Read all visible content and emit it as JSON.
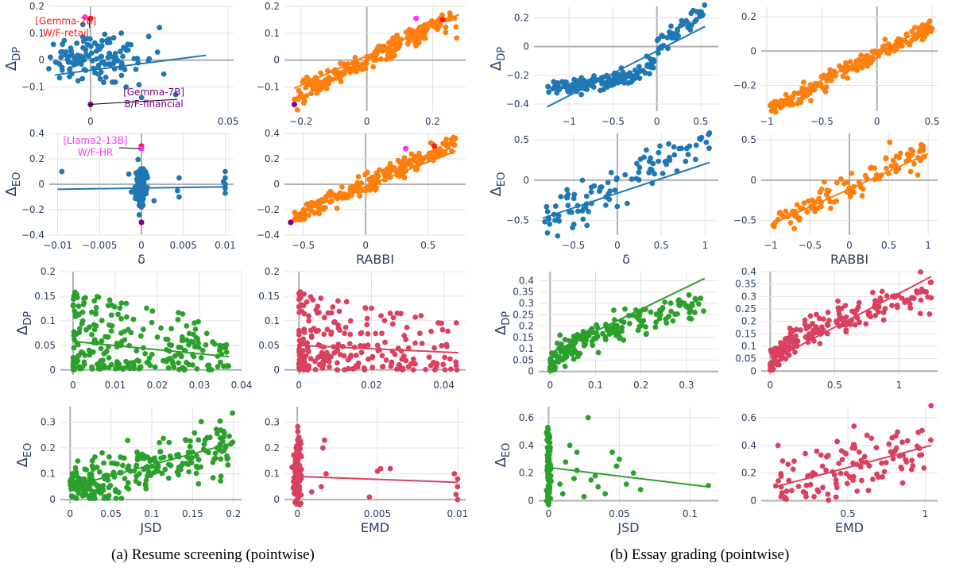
{
  "colors": {
    "blue": "#1f77b4",
    "orange": "#ff7f0e",
    "green": "#2ca02c",
    "crimson": "#d9415f",
    "highlight_red": "#ff1a1a",
    "highlight_magenta": "#ff33ff",
    "highlight_purple": "#800080",
    "tick_text": "#2a3f5f"
  },
  "captions": {
    "a": "(a) Resume screening (pointwise)",
    "b": "(b) Essay grading (pointwise)"
  },
  "chart_data": [
    {
      "id": "a-delta-dp",
      "type": "scatter",
      "color": "blue",
      "ylabel": "Δ",
      "ylabel_sub": "DP",
      "xlabel": "",
      "xlim": [
        -0.015,
        0.052
      ],
      "ylim": [
        -0.19,
        0.2
      ],
      "xticks": [
        0,
        0.05
      ],
      "xtick_labels": [
        "0",
        "0.05"
      ],
      "yticks": [
        -0.2,
        -0.1,
        0,
        0.1,
        0.2
      ],
      "ytick_labels": [
        "",
        "−0.1",
        "0",
        "0.1",
        "0.2"
      ],
      "gen": {
        "mode": "vertical",
        "x0": 0,
        "xspread": 0.01,
        "yc": 0,
        "ys": 0.05,
        "n": 140,
        "seed": 1
      },
      "fit": {
        "x": [
          -0.013,
          0.042
        ],
        "y": [
          -0.055,
          0.018
        ]
      },
      "highlights": [
        {
          "x": 0,
          "y": 0.155,
          "color": "highlight_red"
        },
        {
          "x": -0.002,
          "y": 0.16,
          "color": "highlight_magenta"
        },
        {
          "x": 0,
          "y": -0.165,
          "color": "highlight_purple"
        }
      ],
      "annotations": [
        {
          "lines": [
            "[Gemma-2B]",
            "W/F-retail"
          ],
          "color": "highlight_red",
          "ax": -0.009,
          "ay": 0.125,
          "px": 0,
          "py": 0.155
        },
        {
          "lines": [
            "[Gemma-7B]",
            "B/F-financial"
          ],
          "color": "highlight_purple",
          "ax": 0.023,
          "ay": -0.14,
          "px": 0,
          "py": -0.165
        }
      ]
    },
    {
      "id": "a-rabbi-dp",
      "type": "scatter",
      "color": "orange",
      "ylabel": "",
      "xlabel": "",
      "xlim": [
        -0.25,
        0.3
      ],
      "ylim": [
        -0.19,
        0.2
      ],
      "xticks": [
        -0.2,
        0,
        0.2
      ],
      "xtick_labels": [
        "−0.2",
        "0",
        "0.2"
      ],
      "yticks": [
        -0.2,
        -0.1,
        0,
        0.1,
        0.2
      ],
      "ytick_labels": [
        "",
        "−0.1",
        "0",
        "0.1",
        "0.2"
      ],
      "gen": {
        "mode": "linear",
        "xmin": -0.22,
        "xmax": 0.28,
        "slope": 0.6,
        "intercept": 0,
        "noise": 0.02,
        "n": 220,
        "seed": 2
      },
      "fit": {
        "x": [
          -0.22,
          0.28
        ],
        "y": [
          -0.105,
          0.17
        ]
      },
      "highlights": [
        {
          "x": 0.23,
          "y": 0.15,
          "color": "highlight_red"
        },
        {
          "x": 0.15,
          "y": 0.155,
          "color": "highlight_magenta"
        },
        {
          "x": -0.22,
          "y": -0.165,
          "color": "highlight_purple"
        }
      ]
    },
    {
      "id": "a-delta-eo",
      "type": "scatter",
      "color": "blue",
      "ylabel": "Δ",
      "ylabel_sub": "EO",
      "xlabel": "δ",
      "xlim": [
        -0.011,
        0.011
      ],
      "ylim": [
        -0.4,
        0.4
      ],
      "xticks": [
        -0.01,
        -0.005,
        0,
        0.005,
        0.01
      ],
      "xtick_labels": [
        "−0.01",
        "−0.005",
        "0",
        "0.005",
        "0.01"
      ],
      "yticks": [
        -0.4,
        -0.2,
        0,
        0.2,
        0.4
      ],
      "ytick_labels": [
        "−0.4",
        "−0.2",
        "0",
        "0.2",
        "0.4"
      ],
      "gen": {
        "mode": "vertical",
        "x0": 0,
        "xspread": 0.0003,
        "yc": 0,
        "ys": 0.09,
        "n": 110,
        "seed": 3
      },
      "extra_points": [
        [
          0.01,
          0.1
        ],
        [
          0.01,
          0.05
        ],
        [
          0.01,
          0.0
        ],
        [
          0.01,
          -0.03
        ],
        [
          0.01,
          -0.07
        ],
        [
          0.0098,
          0.02
        ],
        [
          0.0045,
          0.05
        ],
        [
          0.0043,
          -0.05
        ],
        [
          0.0045,
          -0.1
        ],
        [
          -0.0095,
          0.1
        ],
        [
          -0.0015,
          0.08
        ],
        [
          -0.0012,
          -0.06
        ],
        [
          0.0015,
          -0.13
        ]
      ],
      "fit": {
        "x": [
          -0.01,
          0.01
        ],
        "y": [
          -0.04,
          -0.02
        ]
      },
      "highlights": [
        {
          "x": 0,
          "y": 0.3,
          "color": "highlight_red"
        },
        {
          "x": 0,
          "y": 0.28,
          "color": "highlight_magenta"
        },
        {
          "x": 0,
          "y": -0.3,
          "color": "highlight_purple"
        }
      ],
      "annotations": [
        {
          "lines": [
            "[Llama2-13B]",
            "W/F-HR"
          ],
          "color": "highlight_magenta",
          "ax": -0.0055,
          "ay": 0.3,
          "px": 0,
          "py": 0.28
        }
      ]
    },
    {
      "id": "a-rabbi-eo",
      "type": "scatter",
      "color": "orange",
      "ylabel": "",
      "xlabel": "RABBI",
      "xlim": [
        -0.65,
        0.8
      ],
      "ylim": [
        -0.4,
        0.4
      ],
      "xticks": [
        -0.5,
        0,
        0.5
      ],
      "xtick_labels": [
        "−0.5",
        "0",
        "0.5"
      ],
      "yticks": [
        -0.4,
        -0.2,
        0,
        0.2,
        0.4
      ],
      "ytick_labels": [
        "−0.4",
        "−0.2",
        "0",
        "0.2",
        "0.4"
      ],
      "gen": {
        "mode": "linear",
        "xmin": -0.58,
        "xmax": 0.72,
        "slope": 0.45,
        "intercept": 0,
        "noise": 0.035,
        "n": 230,
        "seed": 4
      },
      "fit": {
        "x": [
          -0.58,
          0.72
        ],
        "y": [
          -0.24,
          0.26
        ]
      },
      "highlights": [
        {
          "x": 0.55,
          "y": 0.3,
          "color": "highlight_red"
        },
        {
          "x": 0.32,
          "y": 0.28,
          "color": "highlight_magenta"
        },
        {
          "x": -0.6,
          "y": -0.3,
          "color": "highlight_purple"
        }
      ]
    },
    {
      "id": "a-jsd-dp",
      "type": "scatter",
      "color": "green",
      "ylabel": "Δ",
      "ylabel_sub": "DP",
      "xlabel": "",
      "xlim": [
        -0.003,
        0.04
      ],
      "ylim": [
        -0.01,
        0.2
      ],
      "xticks": [
        0,
        0.01,
        0.02,
        0.03,
        0.04
      ],
      "xtick_labels": [
        "0",
        "0.01",
        "0.02",
        "0.03",
        "0.04"
      ],
      "yticks": [
        0,
        0.05,
        0.1,
        0.15,
        0.2
      ],
      "ytick_labels": [
        "0",
        "0.05",
        "0.1",
        "0.15",
        "0.2"
      ],
      "gen": {
        "mode": "decay",
        "xmax": 0.037,
        "xpow": 1.6,
        "ymax": 0.16,
        "n": 240,
        "seed": 5
      },
      "fit": {
        "x": [
          0,
          0.037
        ],
        "y": [
          0.058,
          0.027
        ]
      }
    },
    {
      "id": "a-emd-dp",
      "type": "scatter",
      "color": "crimson",
      "ylabel": "",
      "xlabel": "",
      "xlim": [
        -0.004,
        0.046
      ],
      "ylim": [
        -0.01,
        0.2
      ],
      "xticks": [
        0,
        0.02,
        0.04
      ],
      "xtick_labels": [
        "0",
        "0.02",
        "0.04"
      ],
      "yticks": [
        0,
        0.05,
        0.1,
        0.15,
        0.2
      ],
      "ytick_labels": [
        "0",
        "0.05",
        "0.1",
        "0.15",
        "0.2"
      ],
      "gen": {
        "mode": "decay",
        "xmax": 0.044,
        "xpow": 2.2,
        "ymax": 0.16,
        "n": 240,
        "seed": 6
      },
      "fit": {
        "x": [
          0,
          0.044
        ],
        "y": [
          0.05,
          0.035
        ]
      }
    },
    {
      "id": "a-jsd-eo",
      "type": "scatter",
      "color": "green",
      "ylabel": "Δ",
      "ylabel_sub": "EO",
      "xlabel": "JSD",
      "xlim": [
        -0.012,
        0.21
      ],
      "ylim": [
        -0.015,
        0.36
      ],
      "xticks": [
        0,
        0.05,
        0.1,
        0.15,
        0.2
      ],
      "xtick_labels": [
        "0",
        "0.05",
        "0.1",
        "0.15",
        "0.2"
      ],
      "yticks": [
        0,
        0.1,
        0.2,
        0.3
      ],
      "ytick_labels": [
        "0",
        "0.1",
        "0.2",
        "0.3"
      ],
      "gen": {
        "mode": "rising",
        "xmax": 0.2,
        "xpow": 1.5,
        "base": 0.04,
        "slope": 0.9,
        "noise": 0.055,
        "n": 260,
        "seed": 7
      },
      "fit": {
        "x": [
          0,
          0.2
        ],
        "y": [
          0.05,
          0.22
        ]
      }
    },
    {
      "id": "a-emd-eo",
      "type": "scatter",
      "color": "crimson",
      "ylabel": "",
      "xlabel": "EMD",
      "xlim": [
        -0.0008,
        0.0105
      ],
      "ylim": [
        -0.015,
        0.36
      ],
      "xticks": [
        0,
        0.005,
        0.01
      ],
      "xtick_labels": [
        "0",
        "0.005",
        "0.01"
      ],
      "yticks": [
        0,
        0.1,
        0.2,
        0.3
      ],
      "ytick_labels": [
        "0",
        "0.1",
        "0.2",
        "0.3"
      ],
      "gen": {
        "mode": "vertical",
        "x0": 0,
        "xspread": 0.00012,
        "yc": 0.08,
        "ys": 0.08,
        "n": 170,
        "seed": 8
      },
      "extra_points": [
        [
          0.0018,
          0.1
        ],
        [
          0.0017,
          0.23
        ],
        [
          0.0015,
          0.05
        ],
        [
          0.0016,
          0.2
        ],
        [
          0.0009,
          0.03
        ],
        [
          0.0052,
          0.12
        ],
        [
          0.005,
          0.11
        ],
        [
          0.0058,
          0.12
        ],
        [
          0.0045,
          0.01
        ],
        [
          0.0098,
          0.1
        ],
        [
          0.01,
          0.05
        ],
        [
          0.01,
          0.08
        ],
        [
          0.0099,
          0.02
        ],
        [
          0.01,
          0.0
        ]
      ],
      "fit": {
        "x": [
          0,
          0.01
        ],
        "y": [
          0.09,
          0.067
        ]
      }
    },
    {
      "id": "b-delta-dp",
      "type": "scatter",
      "color": "blue",
      "ylabel": "Δ",
      "ylabel_sub": "DP",
      "xlabel": "",
      "xlim": [
        -1.4,
        0.7
      ],
      "ylim": [
        -0.45,
        0.28
      ],
      "xticks": [
        -1,
        -0.5,
        0,
        0.5
      ],
      "xtick_labels": [
        "−1",
        "−0.5",
        "0",
        "0.5"
      ],
      "yticks": [
        -0.4,
        -0.2,
        0,
        0.2
      ],
      "ytick_labels": [
        "−0.4",
        "−0.2",
        "0",
        "0.2"
      ],
      "gen": {
        "mode": "curve",
        "xmin": -1.25,
        "xmax": 0.55,
        "f": "sigmoid",
        "noise": 0.03,
        "n": 200,
        "seed": 9
      },
      "fit": {
        "x": [
          -1.25,
          0.55
        ],
        "y": [
          -0.42,
          0.14
        ]
      }
    },
    {
      "id": "b-rabbi-dp",
      "type": "scatter",
      "color": "orange",
      "ylabel": "",
      "xlabel": "",
      "xlim": [
        -1.05,
        0.55
      ],
      "ylim": [
        -0.35,
        0.26
      ],
      "xticks": [
        -1,
        -0.5,
        0,
        0.5
      ],
      "xtick_labels": [
        "−1",
        "−0.5",
        "0",
        "0.5"
      ],
      "yticks": [
        -0.2,
        0,
        0.2
      ],
      "ytick_labels": [
        "−0.2",
        "0",
        "0.2"
      ],
      "gen": {
        "mode": "linear",
        "xmin": -0.97,
        "xmax": 0.5,
        "slope": 0.34,
        "intercept": -0.02,
        "noise": 0.025,
        "n": 200,
        "seed": 10
      },
      "fit": {
        "x": [
          -0.97,
          0.5
        ],
        "y": [
          -0.32,
          0.15
        ]
      }
    },
    {
      "id": "b-delta-eo",
      "type": "scatter",
      "color": "blue",
      "ylabel": "Δ",
      "ylabel_sub": "EO",
      "xlabel": "δ",
      "xlim": [
        -0.95,
        1.15
      ],
      "ylim": [
        -0.68,
        0.58
      ],
      "xticks": [
        -0.5,
        0,
        0.5,
        1
      ],
      "xtick_labels": [
        "−0.5",
        "0",
        "0.5",
        "1"
      ],
      "yticks": [
        -0.5,
        0,
        0.5
      ],
      "ytick_labels": [
        "−0.5",
        "0",
        "0.5"
      ],
      "gen": {
        "mode": "linear",
        "xmin": -0.85,
        "xmax": 1.05,
        "slope": 0.55,
        "intercept": -0.05,
        "noise": 0.14,
        "n": 110,
        "seed": 11
      },
      "fit": {
        "x": [
          -0.85,
          1.05
        ],
        "y": [
          -0.47,
          0.22
        ]
      }
    },
    {
      "id": "b-rabbi-eo",
      "type": "scatter",
      "color": "orange",
      "ylabel": "",
      "xlabel": "RABBI",
      "xlim": [
        -1.12,
        1.12
      ],
      "ylim": [
        -0.68,
        0.58
      ],
      "xticks": [
        -1,
        -0.5,
        0,
        0.5,
        1
      ],
      "xtick_labels": [
        "−1",
        "−0.5",
        "0",
        "0.5",
        "1"
      ],
      "yticks": [
        -0.5,
        0,
        0.5
      ],
      "ytick_labels": [
        "−0.5",
        "0",
        "0.5"
      ],
      "gen": {
        "mode": "linear",
        "xmin": -1.0,
        "xmax": 1.0,
        "slope": 0.45,
        "intercept": -0.1,
        "noise": 0.09,
        "n": 110,
        "seed": 12
      },
      "fit": {
        "x": [
          -1.0,
          1.0
        ],
        "y": [
          -0.55,
          0.33
        ]
      }
    },
    {
      "id": "b-jsd-dp",
      "type": "scatter",
      "color": "green",
      "ylabel": "Δ",
      "ylabel_sub": "DP",
      "xlabel": "",
      "xlim": [
        -0.025,
        0.37
      ],
      "ylim": [
        -0.015,
        0.44
      ],
      "xticks": [
        0,
        0.1,
        0.2,
        0.3
      ],
      "xtick_labels": [
        "0",
        "0.1",
        "0.2",
        "0.3"
      ],
      "yticks": [
        0,
        0.05,
        0.1,
        0.15,
        0.2,
        0.25,
        0.3,
        0.35,
        0.4
      ],
      "ytick_labels": [
        "0",
        "0.05",
        "0.1",
        "0.15",
        "0.2",
        "0.25",
        "0.3",
        "0.35",
        "0.4"
      ],
      "gen": {
        "mode": "sqrt",
        "xmax": 0.34,
        "xpow": 1.7,
        "scale": 0.52,
        "noise": 0.03,
        "n": 210,
        "seed": 13
      },
      "fit": {
        "x": [
          0,
          0.34
        ],
        "y": [
          0.08,
          0.41
        ]
      }
    },
    {
      "id": "b-emd-dp",
      "type": "scatter",
      "color": "crimson",
      "ylabel": "",
      "xlabel": "",
      "xlim": [
        -0.07,
        1.3
      ],
      "ylim": [
        -0.015,
        0.4
      ],
      "xticks": [
        0,
        0.5,
        1
      ],
      "xtick_labels": [
        "0",
        "0.5",
        "1"
      ],
      "yticks": [
        0,
        0.05,
        0.1,
        0.15,
        0.2,
        0.25,
        0.3,
        0.35,
        0.4
      ],
      "ytick_labels": [
        "0",
        "0.05",
        "0.1",
        "0.15",
        "0.2",
        "0.25",
        "0.3",
        "0.35",
        "0.4"
      ],
      "gen": {
        "mode": "sqrt",
        "xmax": 1.25,
        "xpow": 1.6,
        "scale": 0.28,
        "noise": 0.03,
        "n": 210,
        "seed": 14
      },
      "fit": {
        "x": [
          0,
          1.25
        ],
        "y": [
          0.04,
          0.38
        ]
      }
    },
    {
      "id": "b-jsd-eo",
      "type": "scatter",
      "color": "green",
      "ylabel": "Δ",
      "ylabel_sub": "EO",
      "xlabel": "JSD",
      "xlim": [
        -0.007,
        0.12
      ],
      "ylim": [
        -0.02,
        0.68
      ],
      "xticks": [
        0,
        0.05,
        0.1
      ],
      "xtick_labels": [
        "0",
        "0.05",
        "0.1"
      ],
      "yticks": [
        0,
        0.2,
        0.4,
        0.6
      ],
      "ytick_labels": [
        "0",
        "0.2",
        "0.4",
        "0.6"
      ],
      "gen": {
        "mode": "vertical",
        "x0": 0,
        "xspread": 0.0006,
        "yc": 0.22,
        "ys": 0.16,
        "n": 120,
        "seed": 15
      },
      "extra_points": [
        [
          0.015,
          0.4
        ],
        [
          0.02,
          0.35
        ],
        [
          0.02,
          0.22
        ],
        [
          0.028,
          0.6
        ],
        [
          0.03,
          0.15
        ],
        [
          0.035,
          0.1
        ],
        [
          0.045,
          0.35
        ],
        [
          0.048,
          0.25
        ],
        [
          0.05,
          0.3
        ],
        [
          0.04,
          0.05
        ],
        [
          0.055,
          0.12
        ],
        [
          0.06,
          0.2
        ],
        [
          0.065,
          0.08
        ],
        [
          0.01,
          0.05
        ],
        [
          0.012,
          0.28
        ],
        [
          0.025,
          0.03
        ],
        [
          0.033,
          0.18
        ],
        [
          0.113,
          0.11
        ],
        [
          0.008,
          0.12
        ],
        [
          0.018,
          0.16
        ]
      ],
      "fit": {
        "x": [
          0,
          0.113
        ],
        "y": [
          0.24,
          0.1
        ]
      }
    },
    {
      "id": "b-emd-eo",
      "type": "scatter",
      "color": "crimson",
      "ylabel": "",
      "xlabel": "EMD",
      "xlim": [
        -0.06,
        1.08
      ],
      "ylim": [
        -0.02,
        0.68
      ],
      "xticks": [
        0.5,
        1
      ],
      "xtick_labels": [
        "0.5",
        "1"
      ],
      "yticks": [
        0,
        0.2,
        0.4,
        0.6
      ],
      "ytick_labels": [
        "0",
        "0.2",
        "0.4",
        "0.6"
      ],
      "gen": {
        "mode": "linear",
        "xmin": 0.03,
        "xmax": 1.04,
        "slope": 0.32,
        "intercept": 0.09,
        "noise": 0.12,
        "n": 120,
        "seed": 16,
        "clip0": true
      },
      "fit": {
        "x": [
          0.03,
          1.04
        ],
        "y": [
          0.1,
          0.4
        ]
      }
    }
  ]
}
